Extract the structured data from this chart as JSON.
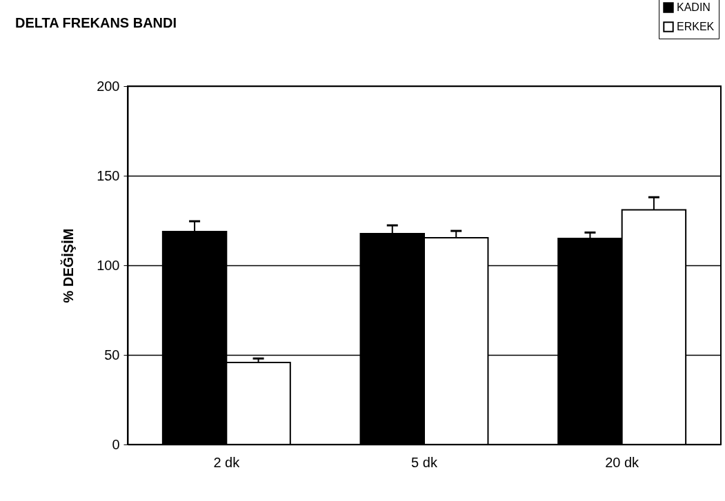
{
  "chart_data": {
    "type": "bar",
    "title": "DELTA FREKANS BANDI",
    "ylabel": "% DEĞİŞİM",
    "categories": [
      "2 dk",
      "5 dk",
      "20 dk"
    ],
    "series": [
      {
        "name": "KADIN",
        "color": "#000000",
        "values": [
          118.8,
          117.7,
          115
        ],
        "errors": [
          [
            118.8,
            124.6
          ],
          [
            117.7,
            122.3
          ],
          [
            115,
            118.3
          ]
        ]
      },
      {
        "name": "ERKEK",
        "color": "#ffffff",
        "values": [
          45.8,
          115.4,
          131
        ],
        "errors": [
          [
            45.8,
            48
          ],
          [
            115.4,
            119.2
          ],
          [
            131,
            138
          ]
        ]
      }
    ],
    "ylim": [
      0,
      200
    ],
    "yticks": [
      0,
      50,
      100,
      150,
      200
    ],
    "grid": "y",
    "legend": "top right"
  }
}
